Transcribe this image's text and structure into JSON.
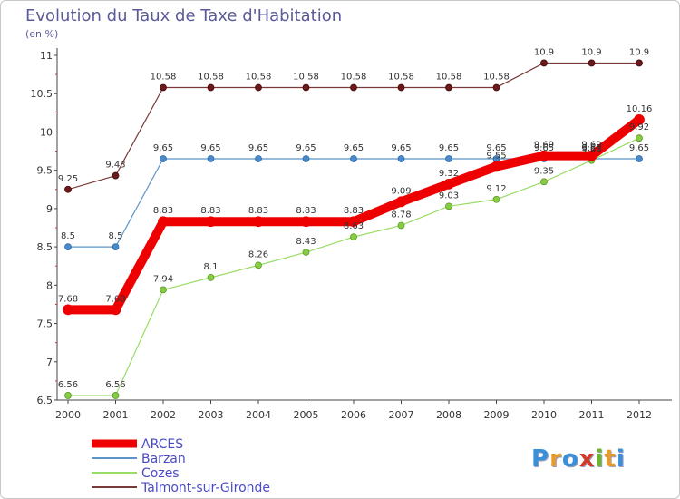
{
  "header": {
    "title": "Evolution du Taux de Taxe d'Habitation",
    "subtitle": "(en %)"
  },
  "brand": {
    "text": "Proxiti",
    "letters": [
      {
        "ch": "P",
        "color": "#3a8fd8"
      },
      {
        "ch": "r",
        "color": "#e89a2a"
      },
      {
        "ch": "o",
        "color": "#3a8fd8"
      },
      {
        "ch": "x",
        "color": "#d43a2a"
      },
      {
        "ch": "i",
        "color": "#6ab82a"
      },
      {
        "ch": "t",
        "color": "#e89a2a"
      },
      {
        "ch": "i",
        "color": "#3a8fd8"
      }
    ]
  },
  "chart_data": {
    "type": "line",
    "title": "Evolution du Taux de Taxe d'Habitation",
    "ylabel": "(en %)",
    "xlabel": "",
    "x": [
      "2000",
      "2001",
      "2002",
      "2003",
      "2004",
      "2005",
      "2006",
      "2007",
      "2008",
      "2009",
      "2010",
      "2011",
      "2012"
    ],
    "ylim": [
      6.5,
      11
    ],
    "yticks": [
      "6.5",
      "7",
      "7.5",
      "8",
      "8.5",
      "9",
      "9.5",
      "10",
      "10.5",
      "11"
    ],
    "grid": false,
    "legend_position": "bottom-left",
    "series": [
      {
        "name": "ARCES",
        "color": "#ee0000",
        "values": [
          7.68,
          7.68,
          8.83,
          8.83,
          8.83,
          8.83,
          8.83,
          9.09,
          9.32,
          9.55,
          9.69,
          9.69,
          10.16
        ],
        "labels": [
          "7.68",
          "7.68",
          "8.83",
          "8.83",
          "8.83",
          "8.83",
          "8.83",
          "9.09",
          "9.32",
          "9.55",
          "9.69",
          "9.69",
          "10.16"
        ]
      },
      {
        "name": "Barzan",
        "color": "#5b95c8",
        "values": [
          8.5,
          8.5,
          9.65,
          9.65,
          9.65,
          9.65,
          9.65,
          9.65,
          9.65,
          9.65,
          9.65,
          9.65,
          9.65
        ],
        "labels": [
          "8.5",
          "8.5",
          "9.65",
          "9.65",
          "9.65",
          "9.65",
          "9.65",
          "9.65",
          "9.65",
          "9.65",
          "9.65",
          "9.65",
          "9.65"
        ]
      },
      {
        "name": "Cozes",
        "color": "#99dd66",
        "values": [
          6.56,
          6.56,
          7.94,
          8.1,
          8.26,
          8.43,
          8.63,
          8.78,
          9.03,
          9.12,
          9.35,
          9.63,
          9.92
        ],
        "labels": [
          "6.56",
          "6.56",
          "7.94",
          "8.1",
          "8.26",
          "8.43",
          "8.63",
          "8.78",
          "9.03",
          "9.12",
          "9.35",
          "9.63",
          "9.92"
        ]
      },
      {
        "name": "Talmont-sur-Gironde",
        "color": "#7a3a3a",
        "values": [
          9.25,
          9.43,
          10.58,
          10.58,
          10.58,
          10.58,
          10.58,
          10.58,
          10.58,
          10.58,
          10.9,
          10.9,
          10.9
        ],
        "labels": [
          "9.25",
          "9.43",
          "10.58",
          "10.58",
          "10.58",
          "10.58",
          "10.58",
          "10.58",
          "10.58",
          "10.58",
          "10.9",
          "10.9",
          "10.9"
        ]
      }
    ]
  }
}
